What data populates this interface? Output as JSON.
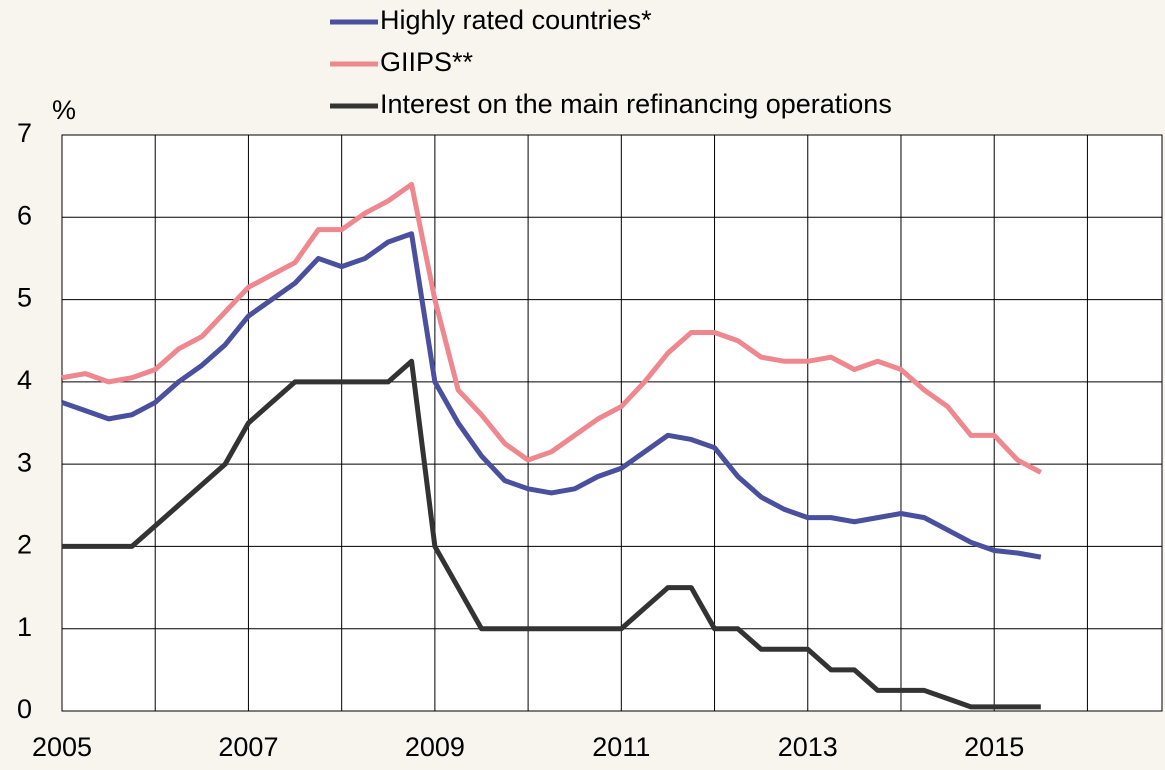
{
  "chart_data": {
    "type": "line",
    "y_label": "%",
    "x": [
      2005,
      2005.25,
      2005.5,
      2005.75,
      2006,
      2006.25,
      2006.5,
      2006.75,
      2007,
      2007.25,
      2007.5,
      2007.75,
      2008,
      2008.25,
      2008.5,
      2008.75,
      2009,
      2009.25,
      2009.5,
      2009.75,
      2010,
      2010.25,
      2010.5,
      2010.75,
      2011,
      2011.25,
      2011.5,
      2011.75,
      2012,
      2012.25,
      2012.5,
      2012.75,
      2013,
      2013.25,
      2013.5,
      2013.75,
      2014,
      2014.25,
      2014.5,
      2014.75,
      2015,
      2015.25,
      2015.5
    ],
    "series": [
      {
        "name": "Highly rated countries*",
        "color": "#4a4f9e",
        "values": [
          3.75,
          3.65,
          3.55,
          3.6,
          3.75,
          4.0,
          4.2,
          4.45,
          4.8,
          5.0,
          5.2,
          5.5,
          5.4,
          5.5,
          5.7,
          5.8,
          4.0,
          3.5,
          3.1,
          2.8,
          2.7,
          2.65,
          2.7,
          2.85,
          2.95,
          3.15,
          3.35,
          3.3,
          3.2,
          2.85,
          2.6,
          2.45,
          2.35,
          2.35,
          2.3,
          2.35,
          2.4,
          2.35,
          2.2,
          2.05,
          1.95,
          1.92,
          1.87
        ]
      },
      {
        "name": "GIIPS**",
        "color": "#ef878e",
        "values": [
          4.05,
          4.1,
          4.0,
          4.05,
          4.15,
          4.4,
          4.55,
          4.85,
          5.15,
          5.3,
          5.45,
          5.85,
          5.85,
          6.05,
          6.2,
          6.4,
          5.0,
          3.9,
          3.6,
          3.25,
          3.05,
          3.15,
          3.35,
          3.55,
          3.7,
          4.0,
          4.35,
          4.6,
          4.6,
          4.5,
          4.3,
          4.25,
          4.25,
          4.3,
          4.15,
          4.25,
          4.15,
          3.9,
          3.7,
          3.35,
          3.35,
          3.05,
          2.9
        ]
      },
      {
        "name": "Interest on the main refinancing operations",
        "color": "#333333",
        "values": [
          2,
          2,
          2,
          2,
          2.25,
          2.5,
          2.75,
          3.0,
          3.5,
          3.75,
          4.0,
          4.0,
          4.0,
          4.0,
          4.0,
          4.25,
          2.0,
          1.5,
          1.0,
          1,
          1,
          1,
          1,
          1,
          1,
          1.25,
          1.5,
          1.5,
          1.0,
          1.0,
          0.75,
          0.75,
          0.75,
          0.5,
          0.5,
          0.25,
          0.25,
          0.25,
          0.15,
          0.05,
          0.05,
          0.05,
          0.05
        ]
      }
    ],
    "xlim": [
      2005,
      2016.8
    ],
    "xticks": [
      2005,
      2007,
      2009,
      2011,
      2013,
      2015
    ],
    "x_minor_ticks": [
      2006,
      2008,
      2010,
      2012,
      2014,
      2016
    ],
    "ylim": [
      0,
      7
    ],
    "yticks": [
      0,
      1,
      2,
      3,
      4,
      5,
      6,
      7
    ],
    "grid": true,
    "legend": "top"
  }
}
